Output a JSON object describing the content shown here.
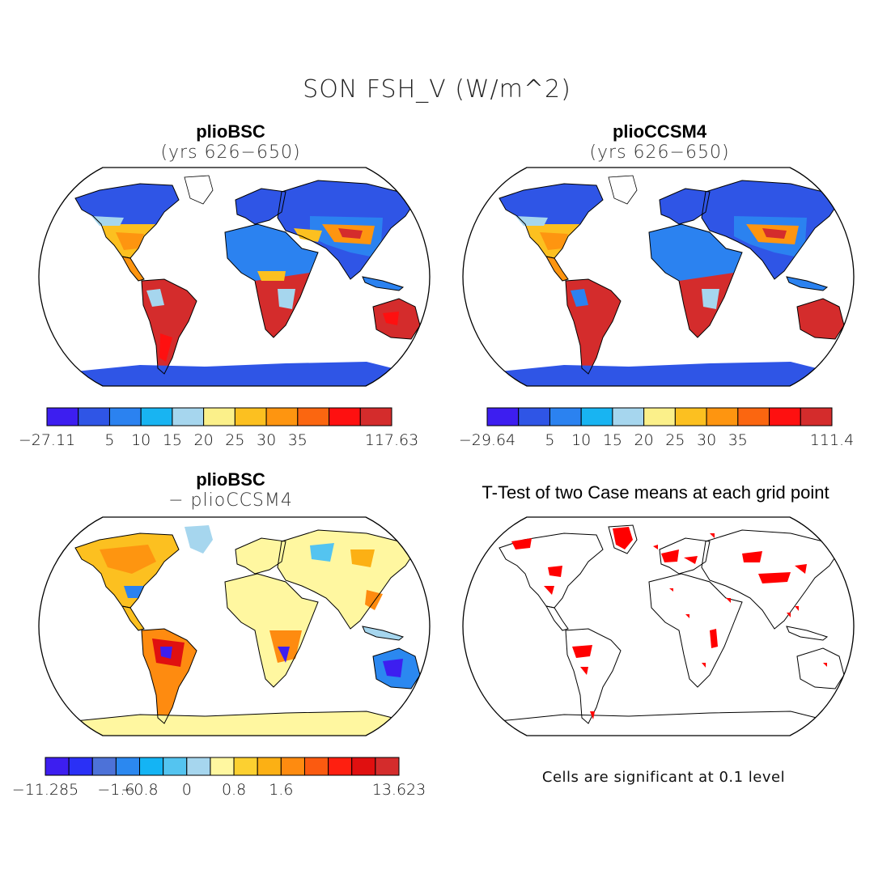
{
  "title": "SON FSH_V (W/m^2)",
  "panels": [
    {
      "id": "p1",
      "title": "plioBSC",
      "subtitle": "(yrs 626−650)"
    },
    {
      "id": "p2",
      "title": "plioCCSM4",
      "subtitle": "(yrs 626−650)"
    },
    {
      "id": "p3",
      "title": "plioBSC",
      "subtitle": "− plioCCSM4"
    },
    {
      "id": "p4",
      "title": "T-Test of two Case means at each grid point",
      "subtitle": ""
    }
  ],
  "colorbars": [
    {
      "id": "cb1",
      "colors": [
        "#3d1ef0",
        "#2f55e6",
        "#2b82f0",
        "#18b4f2",
        "#a6d6ee",
        "#fbf08a",
        "#fcc020",
        "#fe9510",
        "#fb6610",
        "#fe1010",
        "#d42c2c"
      ],
      "labels": [
        "−27.11",
        "5",
        "10",
        "15",
        "20",
        "25",
        "30",
        "35",
        "117.63"
      ]
    },
    {
      "id": "cb2",
      "colors": [
        "#3d1ef0",
        "#2f55e6",
        "#2b82f0",
        "#18b4f2",
        "#a6d6ee",
        "#fbf08a",
        "#fcc020",
        "#fe9510",
        "#fb6610",
        "#fe1010",
        "#d42c2c"
      ],
      "labels": [
        "−29.64",
        "5",
        "10",
        "15",
        "20",
        "25",
        "30",
        "35",
        "111.4"
      ]
    },
    {
      "id": "cb3",
      "colors": [
        "#3d1ef0",
        "#2a30f6",
        "#4d72d8",
        "#2b88f0",
        "#14b4f4",
        "#54c4f0",
        "#a6d6ee",
        "#fff7a0",
        "#fcd030",
        "#fcb014",
        "#fe8b10",
        "#fb5a10",
        "#fe1f10",
        "#e01010",
        "#d42c2c"
      ],
      "labels": [
        "−11.285",
        "−1.6",
        "−0.8",
        "0",
        "0.8",
        "1.6",
        "13.623"
      ]
    }
  ],
  "note": "Cells are significant at 0.1 level"
}
